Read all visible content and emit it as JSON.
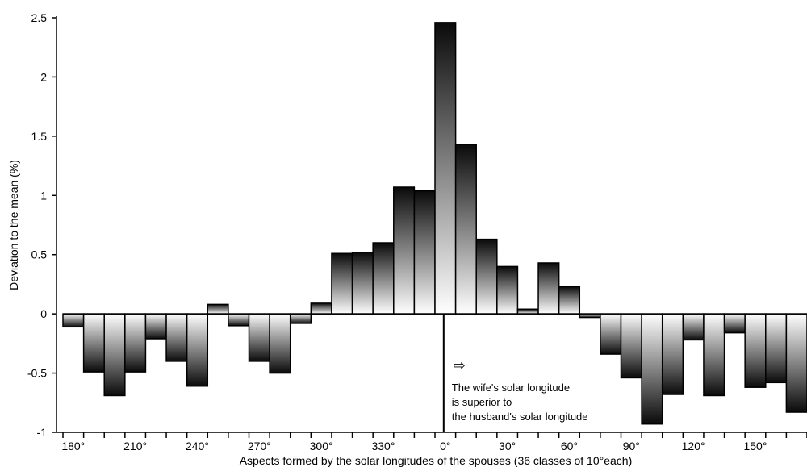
{
  "chart_data": {
    "type": "bar",
    "title": "",
    "xlabel": "Aspects formed by the solar longitudes of the spouses (36 classes of 10°each)",
    "ylabel": "Deviation to the mean (%)",
    "ylim": [
      -1,
      2.5
    ],
    "yticks": [
      "-1",
      "-0.5",
      "0",
      "0.5",
      "1",
      "1.5",
      "2",
      "2.5"
    ],
    "ytick_values": [
      -1,
      -0.5,
      0,
      0.5,
      1,
      1.5,
      2,
      2.5
    ],
    "xtick_labels": [
      "180°",
      "210°",
      "240°",
      "270°",
      "300°",
      "330°",
      "0°",
      "30°",
      "60°",
      "90°",
      "120°",
      "150°"
    ],
    "xtick_classes": [
      0,
      3,
      6,
      9,
      12,
      15,
      18,
      21,
      24,
      27,
      30,
      33
    ],
    "values": [
      -0.11,
      -0.49,
      -0.69,
      -0.49,
      -0.21,
      -0.4,
      -0.61,
      0.08,
      -0.1,
      -0.4,
      -0.5,
      -0.08,
      0.09,
      0.51,
      0.52,
      0.6,
      1.07,
      1.04,
      2.46,
      1.43,
      0.63,
      0.4,
      0.04,
      0.43,
      0.23,
      -0.03,
      -0.34,
      -0.54,
      -0.93,
      -0.68,
      -0.22,
      -0.69,
      -0.16,
      -0.62,
      -0.58,
      -0.83
    ],
    "grid": false,
    "divider_class": 18,
    "annotation": {
      "arrow": "⇨",
      "lines": [
        "The wife's solar longitude",
        "is superior to",
        "the husband's solar longitude"
      ]
    }
  }
}
